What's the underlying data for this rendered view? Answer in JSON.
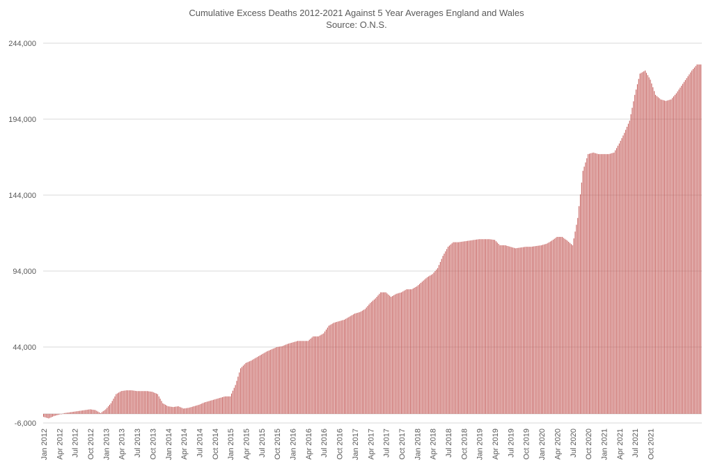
{
  "chart_data": {
    "type": "bar",
    "title": "Cumulative Excess Deaths 2012-2021 Against 5 Year Averages England and Wales",
    "subtitle": "Source: O.N.S.",
    "xlabel": "",
    "ylabel": "",
    "ylim": [
      -6000,
      244000
    ],
    "yticks": [
      "-6,000",
      "44,000",
      "94,000",
      "144,000",
      "194,000",
      "244,000"
    ],
    "ytick_values": [
      -6000,
      44000,
      94000,
      144000,
      194000,
      244000
    ],
    "grid": true,
    "legend": "none",
    "bar_color": "#C0504D",
    "x_tick_labels": [
      "Jan 2012",
      "Apr 2012",
      "Jul 2012",
      "Oct 2012",
      "Jan 2013",
      "Apr 2013",
      "Jul 2013",
      "Oct 2013",
      "Jan 2014",
      "Apr 2014",
      "Jul 2014",
      "Oct 2014",
      "Jan 2015",
      "Apr 2015",
      "Jul 2015",
      "Oct 2015",
      "Jan 2016",
      "Apr 2016",
      "Jul 2016",
      "Oct 2016",
      "Jan 2017",
      "Apr 2017",
      "Jul 2017",
      "Oct 2017",
      "Jan 2018",
      "Apr 2018",
      "Jul 2018",
      "Oct 2018",
      "Jan 2019",
      "Apr 2019",
      "Jul 2019",
      "Oct 2019",
      "Jan 2020",
      "Apr 2020",
      "Jul 2020",
      "Oct 2020",
      "Jan 2021",
      "Apr 2021",
      "Jul 2021",
      "Oct 2021"
    ],
    "monthly_values": [
      -2000,
      -3000,
      -1500,
      -500,
      500,
      1000,
      1500,
      2000,
      2500,
      3000,
      2500,
      500,
      3000,
      7000,
      13000,
      15000,
      15500,
      15500,
      15000,
      15000,
      15000,
      14500,
      13000,
      7000,
      5000,
      4500,
      5000,
      3500,
      4000,
      5000,
      6000,
      7500,
      8500,
      9500,
      10500,
      11500,
      11500,
      19000,
      30000,
      33500,
      35000,
      37000,
      39000,
      41000,
      42500,
      44000,
      44500,
      46000,
      47000,
      48000,
      48000,
      48000,
      51000,
      51000,
      53000,
      58000,
      60000,
      61000,
      62000,
      64000,
      66000,
      67000,
      69000,
      73000,
      76000,
      80000,
      80000,
      77000,
      79000,
      80000,
      82000,
      82000,
      84000,
      87000,
      90000,
      92000,
      96000,
      104000,
      110000,
      113000,
      113000,
      113500,
      114000,
      114500,
      115000,
      115000,
      115000,
      114500,
      111000,
      111000,
      110000,
      109000,
      109500,
      110000,
      110000,
      110500,
      111000,
      112000,
      114000,
      116500,
      116500,
      114000,
      111000,
      129000,
      160000,
      171000,
      172000,
      171000,
      171000,
      171000,
      172000,
      178000,
      185000,
      193000,
      210000,
      224000,
      226000,
      220000,
      210000,
      207000,
      206000,
      207000,
      211000,
      216000,
      221000,
      226000,
      230000
    ]
  }
}
